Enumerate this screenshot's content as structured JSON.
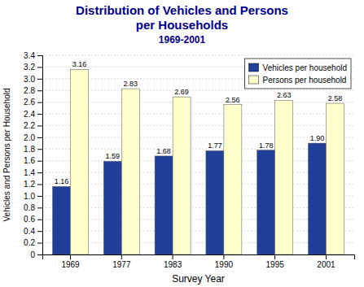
{
  "chart_data": {
    "type": "bar",
    "title": "Distribution of Vehicles and Persons per Households",
    "subtitle": "1969-2001",
    "title_color": "#00008B",
    "x_label": "Survey Year",
    "y_label": "Vehicles and Persons per Household",
    "categories": [
      "1969",
      "1977",
      "1983",
      "1990",
      "1995",
      "2001"
    ],
    "series": [
      {
        "name": "Vehicles per household",
        "color": "#1f3f99",
        "values": [
          1.16,
          1.59,
          1.68,
          1.77,
          1.78,
          1.9
        ],
        "value_labels": [
          "1.16",
          "1.59",
          "1.68",
          "1.77",
          "1.78",
          "1.90"
        ]
      },
      {
        "name": "Persons per household",
        "color": "#ffffcc",
        "values": [
          3.16,
          2.83,
          2.69,
          2.56,
          2.63,
          2.58
        ],
        "value_labels": [
          "3.16",
          "2.83",
          "2.69",
          "2.56",
          "2.63",
          "2.58"
        ]
      }
    ],
    "ylim": [
      0,
      3.4
    ],
    "yticks": [
      0,
      0.2,
      0.4,
      0.6,
      0.8,
      {
        "value": 1,
        "label": "1.0"
      },
      1.2,
      1.4,
      1.6,
      1.8,
      {
        "value": 2,
        "label": "2.0"
      },
      2.2,
      2.4,
      2.6,
      2.8,
      {
        "value": 3,
        "label": "3.0"
      },
      3.2,
      3.4
    ],
    "grid": true,
    "legend": "top-right",
    "data_labels": true
  }
}
